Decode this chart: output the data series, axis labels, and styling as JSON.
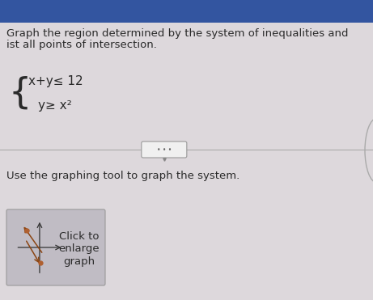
{
  "background_color": "#ddd8dc",
  "title_line1": "Graph the region determined by the system of inequalities and",
  "title_line2": "ist all points of intersection.",
  "eq1": "x+y≤ 12",
  "eq2": "y≥ x²",
  "instruction": "Use the graphing tool to graph the system.",
  "button_text_line1": "Click to",
  "button_text_line2": "enlarge",
  "button_text_line3": "graph",
  "text_color": "#2a2a2a",
  "header_bg": "#3355a0",
  "divider_color": "#aaaaaa",
  "slider_bg": "#f0f0f0",
  "slider_border": "#999999",
  "button_bg": "#c0bcc4",
  "button_border": "#999999",
  "font_size_title": 9.5,
  "font_size_eq": 11,
  "font_size_instruction": 9.5,
  "font_size_button": 9.5,
  "font_size_brace": 32
}
